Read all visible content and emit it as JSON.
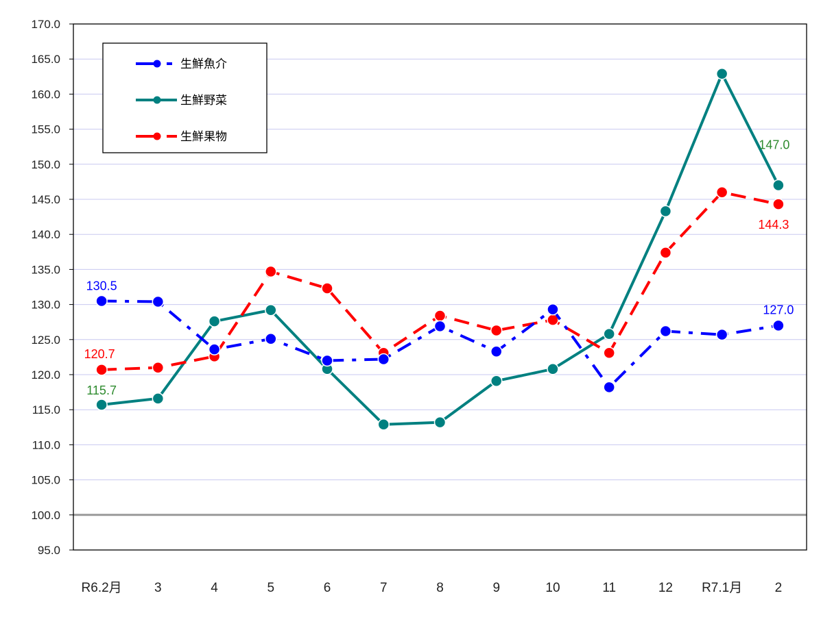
{
  "chart_data": {
    "type": "line",
    "title": "",
    "xlabel": "",
    "ylabel": "",
    "ylim": [
      95.0,
      170.0
    ],
    "ytick_step": 5.0,
    "yticks": [
      "170.0",
      "165.0",
      "160.0",
      "155.0",
      "150.0",
      "145.0",
      "140.0",
      "135.0",
      "130.0",
      "125.0",
      "120.0",
      "115.0",
      "110.0",
      "105.0",
      "100.0",
      "95.0"
    ],
    "grid": true,
    "reference_line": 100.0,
    "legend_position": "upper-left-inside",
    "categories": [
      "R6.2月",
      "3",
      "4",
      "5",
      "6",
      "7",
      "8",
      "9",
      "10",
      "11",
      "12",
      "R7.1月",
      "2"
    ],
    "series": [
      {
        "name": "生鮮魚介",
        "color": "#0000FF",
        "line_style": "dash-dot",
        "values": [
          130.5,
          130.4,
          123.6,
          125.1,
          122.0,
          122.2,
          126.9,
          123.3,
          129.3,
          118.2,
          126.2,
          125.7,
          127.0
        ],
        "labels": [
          {
            "index": 0,
            "text": "130.5"
          },
          {
            "index": 12,
            "text": "127.0"
          }
        ]
      },
      {
        "name": "生鮮野菜",
        "color": "#008080",
        "line_style": "solid",
        "values": [
          115.7,
          116.6,
          127.6,
          129.2,
          120.8,
          112.9,
          113.2,
          119.1,
          120.8,
          125.8,
          143.3,
          162.9,
          147.0
        ],
        "labels": [
          {
            "index": 0,
            "text": "115.7"
          },
          {
            "index": 12,
            "text": "147.0"
          }
        ]
      },
      {
        "name": "生鮮果物",
        "color": "#FF0000",
        "line_style": "dashed",
        "values": [
          120.7,
          121.0,
          122.6,
          134.7,
          132.3,
          123.1,
          128.4,
          126.3,
          127.8,
          123.1,
          137.4,
          146.0,
          144.3
        ],
        "labels": [
          {
            "index": 0,
            "text": "120.7"
          },
          {
            "index": 12,
            "text": "144.3"
          }
        ]
      }
    ]
  },
  "legend": {
    "items": [
      {
        "label": "生鮮魚介"
      },
      {
        "label": "生鮮野菜"
      },
      {
        "label": "生鮮果物"
      }
    ]
  },
  "colors": {
    "grid": "#C8C8F0",
    "reference": "#999999",
    "axis": "#000000",
    "label_green": "#2E8B2E"
  }
}
